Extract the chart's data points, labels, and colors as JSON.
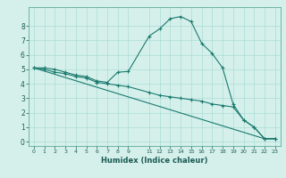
{
  "xlabel": "Humidex (Indice chaleur)",
  "ylabel": "",
  "background_color": "#d5f0eb",
  "line_color": "#1a7a6e",
  "grid_color": "#aaddd6",
  "xlim": [
    -0.5,
    23.5
  ],
  "ylim": [
    -0.3,
    9.3
  ],
  "xtick_vals": [
    0,
    1,
    2,
    3,
    4,
    5,
    6,
    7,
    8,
    9,
    11,
    12,
    13,
    14,
    15,
    16,
    17,
    18,
    19,
    20,
    21,
    22,
    23
  ],
  "ytick_vals": [
    0,
    1,
    2,
    3,
    4,
    5,
    6,
    7,
    8
  ],
  "series1_x": [
    0,
    1,
    2,
    3,
    4,
    5,
    6,
    7,
    8,
    9,
    11,
    12,
    13,
    14,
    15,
    16,
    17,
    18,
    19,
    20,
    21,
    22,
    23
  ],
  "series1_y": [
    5.1,
    5.1,
    5.0,
    4.8,
    4.6,
    4.5,
    4.2,
    4.1,
    4.8,
    4.85,
    7.3,
    7.8,
    8.5,
    8.65,
    8.3,
    6.8,
    6.1,
    5.1,
    2.6,
    1.5,
    1.0,
    0.2,
    0.2
  ],
  "series2_x": [
    0,
    1,
    2,
    3,
    4,
    5,
    6,
    7,
    8,
    9,
    11,
    12,
    13,
    14,
    15,
    16,
    17,
    18,
    19,
    20,
    21,
    22,
    23
  ],
  "series2_y": [
    5.1,
    5.0,
    4.8,
    4.7,
    4.5,
    4.4,
    4.1,
    4.0,
    3.9,
    3.8,
    3.4,
    3.2,
    3.1,
    3.0,
    2.9,
    2.8,
    2.6,
    2.5,
    2.4,
    1.5,
    1.0,
    0.2,
    0.2
  ],
  "series3_x": [
    0,
    22,
    23
  ],
  "series3_y": [
    5.1,
    0.2,
    0.2
  ]
}
